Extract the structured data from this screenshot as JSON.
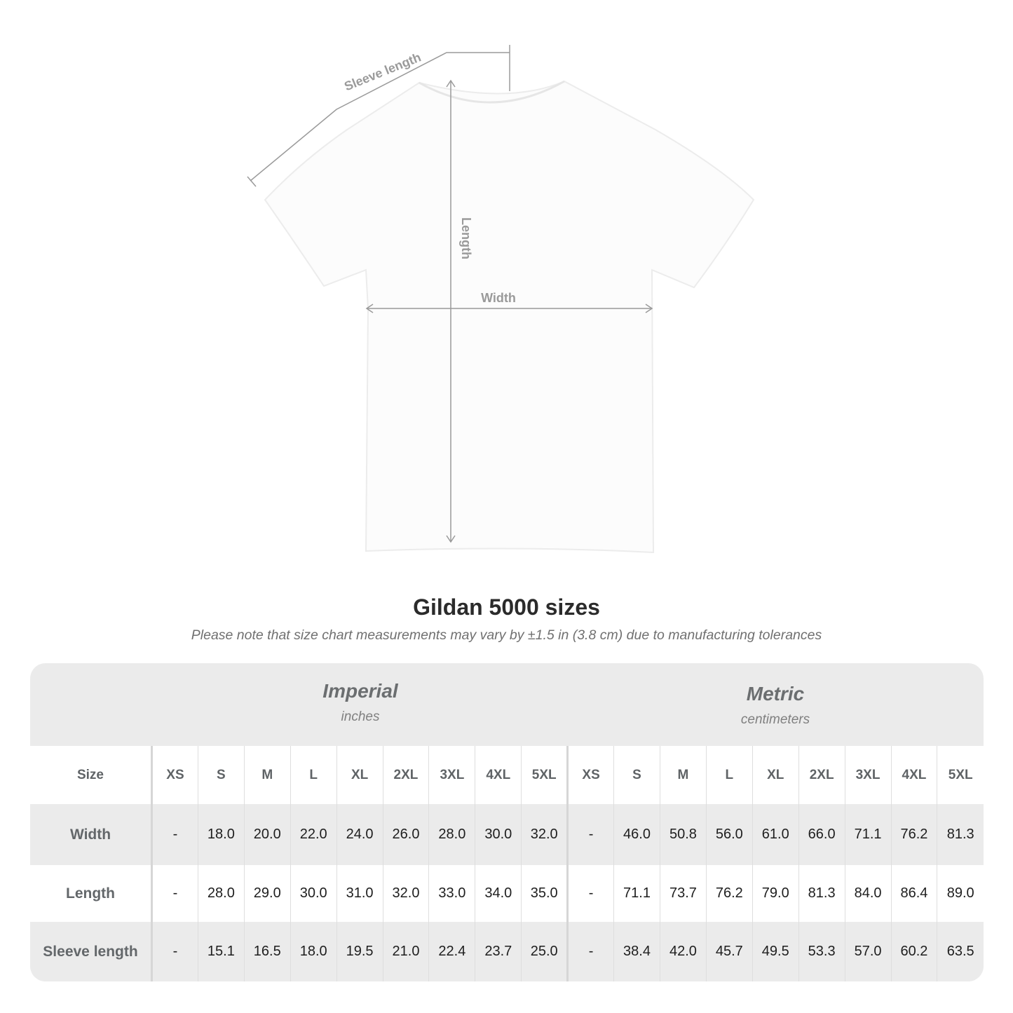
{
  "diagram": {
    "sleeve_label": "Sleeve length",
    "length_label": "Length",
    "width_label": "Width"
  },
  "title": "Gildan 5000 sizes",
  "note": "Please note that size chart measurements may vary by ±1.5 in (3.8 cm) due to manufacturing tolerances",
  "imperial": {
    "name": "Imperial",
    "unit": "inches"
  },
  "metric": {
    "name": "Metric",
    "unit": "centimeters"
  },
  "table": {
    "size_label": "Size",
    "sizes": [
      "XS",
      "S",
      "M",
      "L",
      "XL",
      "2XL",
      "3XL",
      "4XL",
      "5XL"
    ],
    "rows": [
      {
        "label": "Width",
        "imperial": [
          "-",
          "18.0",
          "20.0",
          "22.0",
          "24.0",
          "26.0",
          "28.0",
          "30.0",
          "32.0"
        ],
        "metric": [
          "-",
          "46.0",
          "50.8",
          "56.0",
          "61.0",
          "66.0",
          "71.1",
          "76.2",
          "81.3"
        ]
      },
      {
        "label": "Length",
        "imperial": [
          "-",
          "28.0",
          "29.0",
          "30.0",
          "31.0",
          "32.0",
          "33.0",
          "34.0",
          "35.0"
        ],
        "metric": [
          "-",
          "71.1",
          "73.7",
          "76.2",
          "79.0",
          "81.3",
          "84.0",
          "86.4",
          "89.0"
        ]
      },
      {
        "label": "Sleeve length",
        "imperial": [
          "-",
          "15.1",
          "16.5",
          "18.0",
          "19.5",
          "21.0",
          "22.4",
          "23.7",
          "25.0"
        ],
        "metric": [
          "-",
          "38.4",
          "42.0",
          "45.7",
          "49.5",
          "53.3",
          "57.0",
          "60.2",
          "63.5"
        ]
      }
    ]
  },
  "colors": {
    "measure_line": "#9a9a9a",
    "card_bg": "#ebebeb"
  }
}
